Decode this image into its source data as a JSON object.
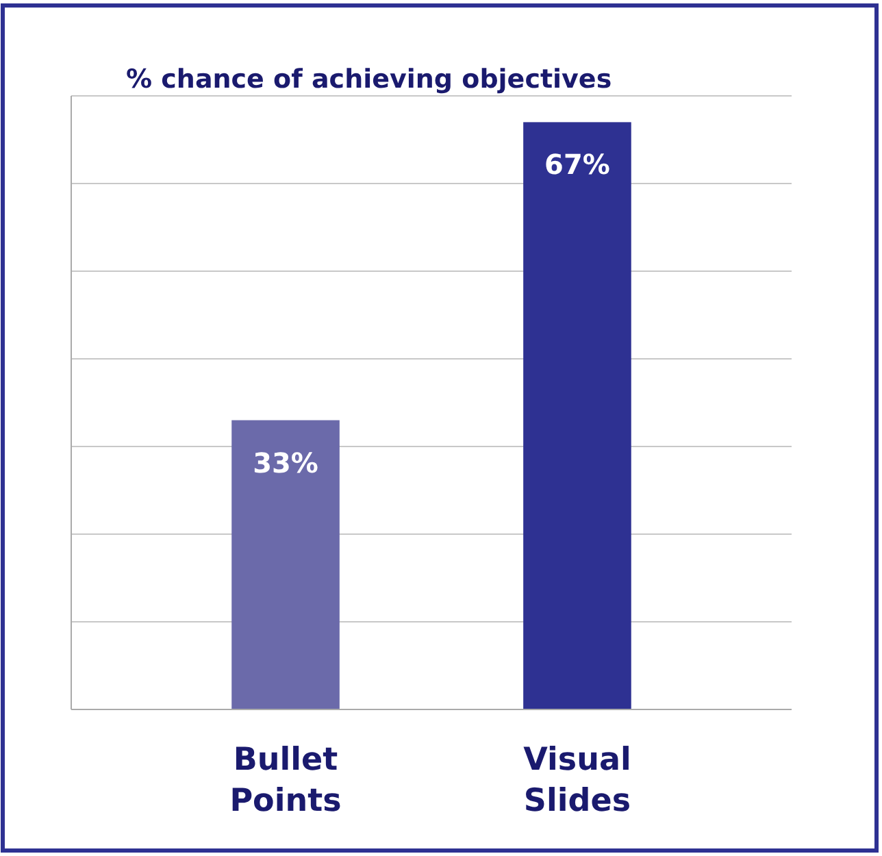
{
  "chart_data": {
    "type": "bar",
    "title": "% chance of achieving objectives",
    "categories": [
      "Bullet Points",
      "Visual Slides"
    ],
    "values": [
      33,
      67
    ],
    "colors": [
      "#6b6aaa",
      "#2e3192"
    ],
    "value_labels": [
      "33%",
      "67%"
    ],
    "ylim": [
      0,
      70
    ],
    "yticks": [
      {
        "value": 0,
        "label": null
      },
      {
        "value": 10,
        "label": null
      },
      {
        "value": 20,
        "label": null
      },
      {
        "value": 30,
        "label": null
      },
      {
        "value": 40,
        "label": null
      },
      {
        "value": 50,
        "label": null
      },
      {
        "value": 60,
        "label": null
      },
      {
        "value": 70,
        "label": null
      }
    ],
    "grid": "y",
    "tick_labels": "x"
  }
}
